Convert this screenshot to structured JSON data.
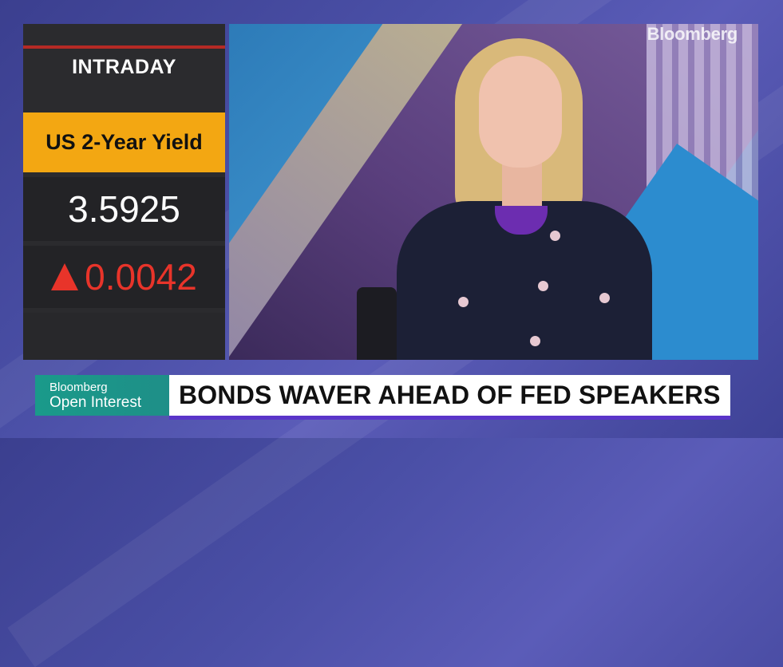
{
  "panel": {
    "label": "INTRADAY",
    "instrument": "US 2-Year Yield",
    "value": "3.5925",
    "change": "0.0042",
    "change_direction": "up",
    "change_color": "#e8342a",
    "accent_color": "#f3a712"
  },
  "video": {
    "logo": "Bloomberg"
  },
  "lower_third": {
    "brand": "Bloomberg",
    "show": "Open Interest",
    "headline": "BONDS WAVER AHEAD OF FED SPEAKERS",
    "show_color": "#1a9a8a",
    "underline_color": "#5a35c9"
  }
}
